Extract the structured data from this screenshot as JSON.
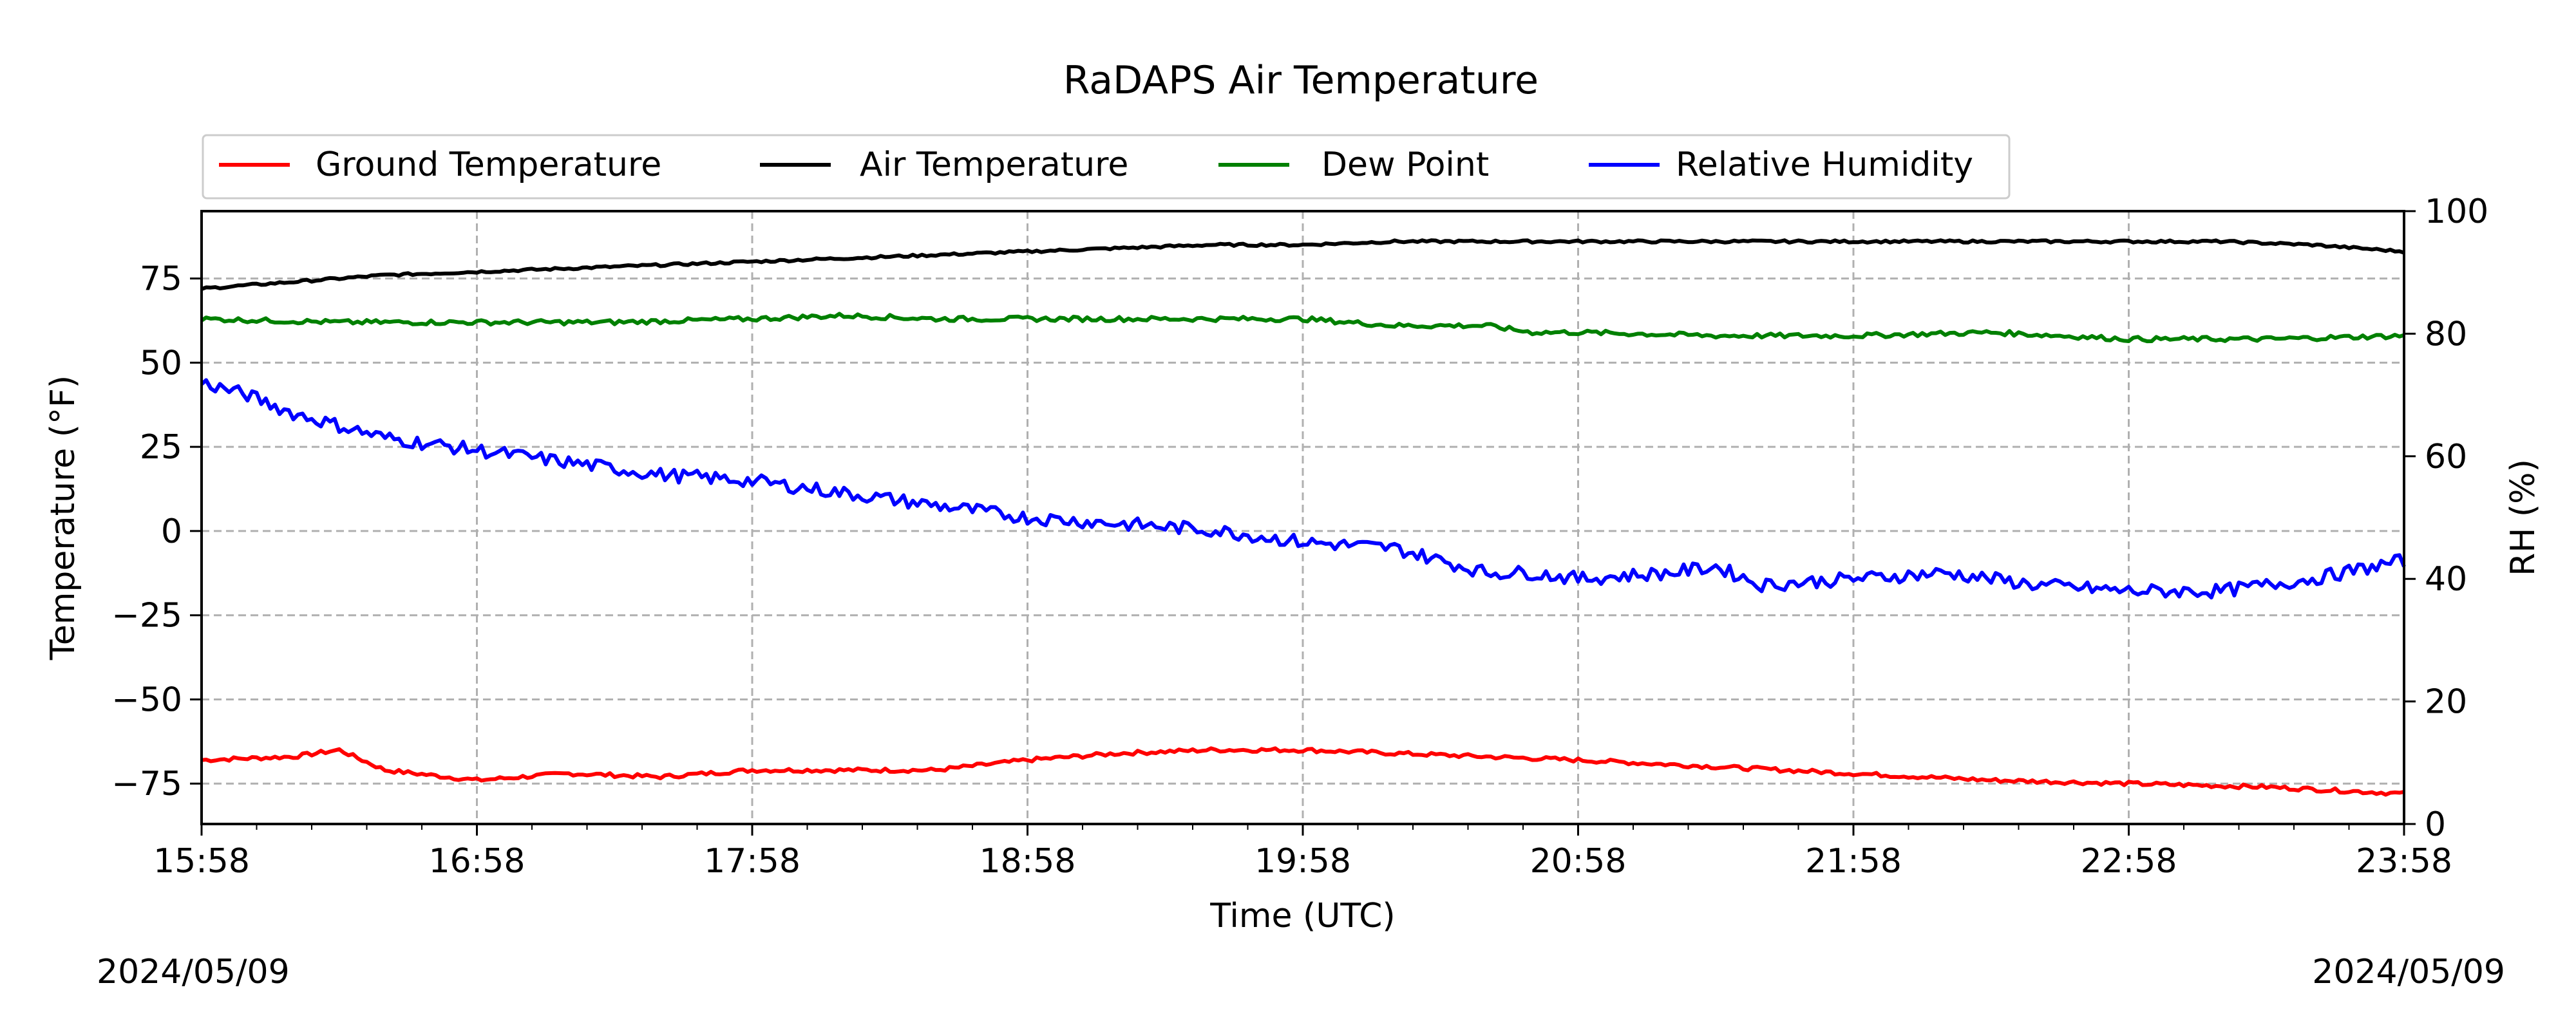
{
  "dates": {
    "left": "2024/05/09",
    "right": "2024/05/09"
  },
  "chart_data": {
    "type": "line",
    "title": "RaDAPS Air Temperature",
    "xlabel": "Time (UTC)",
    "ylabel": "Temperature ($^\\circ$F)",
    "ylabel_display": "Temperature (°F)",
    "y2label": "RH (%)",
    "xlim": [
      "15:58",
      "23:58"
    ],
    "ylim": [
      -87,
      95
    ],
    "y2lim": [
      0,
      100
    ],
    "xticks": [
      "15:58",
      "16:58",
      "17:58",
      "18:58",
      "19:58",
      "20:58",
      "21:58",
      "22:58",
      "23:58"
    ],
    "yticks": [
      75,
      50,
      25,
      0,
      -25,
      -50,
      -75
    ],
    "ytick_labels": [
      "75",
      "50",
      "25",
      "0",
      "−25",
      "−50",
      "−75"
    ],
    "y2ticks": [
      0,
      20,
      40,
      60,
      80,
      100
    ],
    "grid": true,
    "legend_placement": "top",
    "series": [
      {
        "name": "Ground Temperature",
        "axis": "left",
        "color": "#ff0000",
        "x": [
          "15:58",
          "16:18",
          "16:28",
          "16:38",
          "16:58",
          "17:18",
          "17:38",
          "17:58",
          "18:18",
          "18:38",
          "18:58",
          "19:18",
          "19:38",
          "19:58",
          "20:18",
          "20:38",
          "20:58",
          "21:28",
          "21:58",
          "22:28",
          "22:58",
          "23:28",
          "23:58"
        ],
        "values": [
          -68,
          -67,
          -65,
          -71,
          -74,
          -72,
          -73,
          -71,
          -71,
          -71,
          -68,
          -66,
          -65,
          -65,
          -66,
          -67,
          -68,
          -70,
          -72,
          -74,
          -75,
          -76,
          -78
        ]
      },
      {
        "name": "Air Temperature",
        "axis": "left",
        "color": "#000000",
        "x": [
          "15:58",
          "16:18",
          "16:38",
          "16:58",
          "17:18",
          "17:38",
          "17:58",
          "18:18",
          "18:38",
          "18:58",
          "19:18",
          "19:38",
          "19:58",
          "20:18",
          "20:38",
          "20:58",
          "21:18",
          "21:38",
          "21:58",
          "22:18",
          "22:38",
          "22:58",
          "23:18",
          "23:38",
          "23:58"
        ],
        "values": [
          72,
          74,
          76,
          77,
          78,
          79,
          80,
          81,
          82,
          83,
          84,
          85,
          85,
          86,
          86,
          86,
          86,
          86,
          86,
          86,
          86,
          86,
          86,
          85,
          83
        ]
      },
      {
        "name": "Dew Point",
        "axis": "left",
        "color": "#008000",
        "x": [
          "15:58",
          "16:28",
          "16:58",
          "17:28",
          "17:58",
          "18:18",
          "18:38",
          "18:58",
          "19:28",
          "19:58",
          "20:18",
          "20:38",
          "20:48",
          "20:58",
          "21:28",
          "21:58",
          "22:28",
          "22:58",
          "23:28",
          "23:58"
        ],
        "values": [
          63,
          62,
          62,
          62,
          63,
          64,
          63,
          63,
          63,
          63,
          61,
          61,
          59,
          59,
          58,
          58,
          59,
          57,
          57,
          58
        ]
      },
      {
        "name": "Relative Humidity",
        "axis": "right",
        "color": "#0000ff",
        "x": [
          "15:58",
          "16:08",
          "16:18",
          "16:28",
          "16:38",
          "16:58",
          "17:18",
          "17:38",
          "17:58",
          "18:18",
          "18:38",
          "18:58",
          "19:18",
          "19:38",
          "19:58",
          "20:18",
          "20:38",
          "20:48",
          "20:58",
          "21:18",
          "21:28",
          "21:38",
          "21:58",
          "22:18",
          "22:28",
          "22:38",
          "22:58",
          "23:18",
          "23:38",
          "23:58"
        ],
        "values": [
          72,
          70,
          67,
          65,
          63,
          61,
          59,
          57,
          56,
          54,
          52,
          50,
          49,
          48,
          46,
          45,
          41,
          41,
          40,
          41,
          42,
          39,
          40,
          41,
          40,
          39,
          38,
          38,
          40,
          43
        ]
      }
    ]
  }
}
